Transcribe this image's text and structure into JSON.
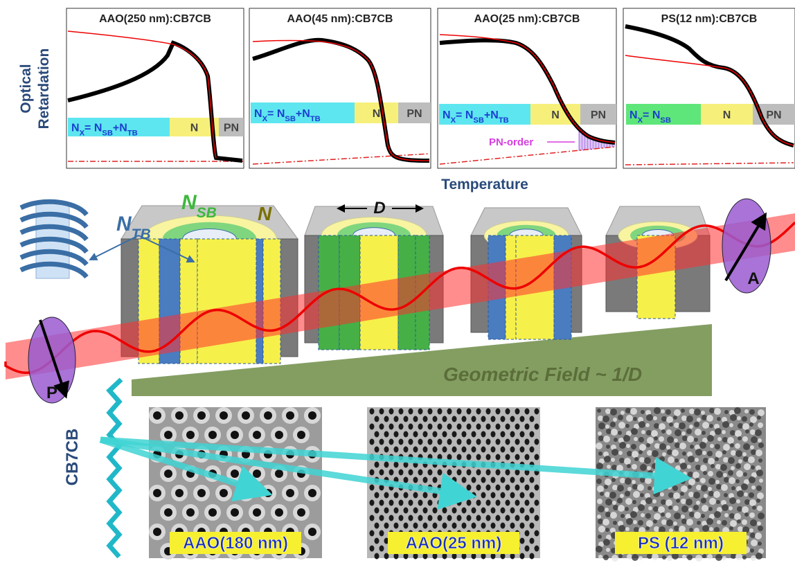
{
  "plots": {
    "y_label": [
      "Optical",
      "Retardation"
    ],
    "x_label": "Temperature",
    "annotation": "PN-order",
    "panels": [
      {
        "title": "AAO(250 nm):CB7CB",
        "phases": [
          {
            "parts": [
              {
                "text": "N"
              },
              {
                "sub": "X"
              },
              {
                "text": "= N"
              },
              {
                "sub": "SB"
              },
              {
                "text": "+N"
              },
              {
                "sub": "TB"
              }
            ]
          },
          {
            "parts": [
              {
                "text": "N"
              }
            ]
          },
          {
            "parts": [
              {
                "text": "PN"
              }
            ]
          }
        ]
      },
      {
        "title": "AAO(45 nm):CB7CB",
        "phases": [
          {
            "parts": [
              {
                "text": "N"
              },
              {
                "sub": "X"
              },
              {
                "text": "= N"
              },
              {
                "sub": "SB"
              },
              {
                "text": "+N"
              },
              {
                "sub": "TB"
              }
            ]
          },
          {
            "parts": [
              {
                "text": "N"
              }
            ]
          },
          {
            "parts": [
              {
                "text": "PN"
              }
            ]
          }
        ]
      },
      {
        "title": "AAO(25 nm):CB7CB",
        "phases": [
          {
            "parts": [
              {
                "text": "N"
              },
              {
                "sub": "X"
              },
              {
                "text": "= N"
              },
              {
                "sub": "SB"
              },
              {
                "text": "+N"
              },
              {
                "sub": "TB"
              }
            ]
          },
          {
            "parts": [
              {
                "text": "N"
              }
            ]
          },
          {
            "parts": [
              {
                "text": "PN"
              }
            ]
          }
        ]
      },
      {
        "title": "PS(12 nm):CB7CB",
        "phases": [
          {
            "parts": [
              {
                "text": "N"
              },
              {
                "sub": "X"
              },
              {
                "text": "= N"
              },
              {
                "sub": "SB"
              }
            ]
          },
          {
            "parts": [
              {
                "text": "N"
              }
            ]
          },
          {
            "parts": [
              {
                "text": "PN"
              }
            ]
          }
        ]
      }
    ]
  },
  "diagram": {
    "n_tb": [
      {
        "text": "N"
      },
      {
        "sub": "TB"
      }
    ],
    "n_sb": [
      {
        "text": "N"
      },
      {
        "sub": "SB"
      }
    ],
    "n": "N",
    "d": "D",
    "analyzer": "A",
    "polarizer": "P",
    "geometric_field": "Geometric Field  ~ 1/D"
  },
  "molecule": "CB7CB",
  "images": [
    {
      "label": "AAO(180 nm)"
    },
    {
      "label": "AAO(25 nm)"
    },
    {
      "label": "PS (12 nm)"
    }
  ]
}
